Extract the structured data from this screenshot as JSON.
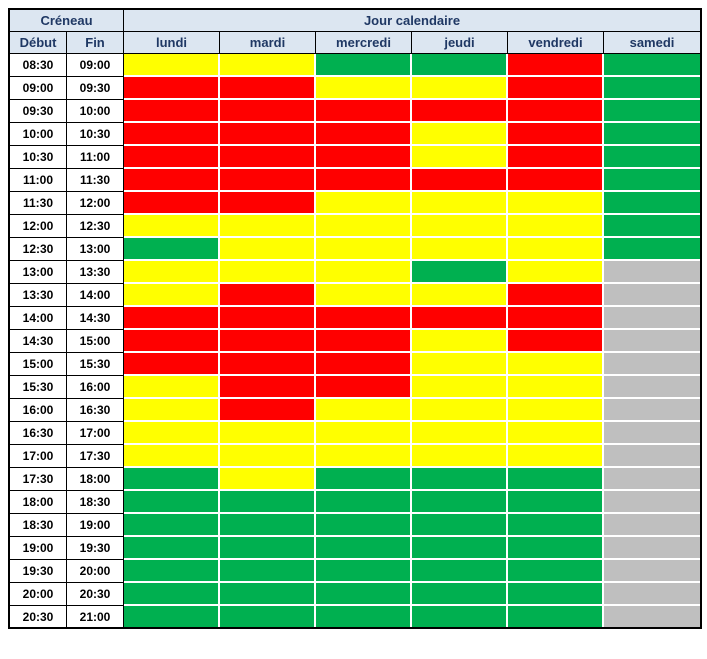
{
  "header": {
    "creneau_label": "Créneau",
    "jour_label": "Jour calendaire",
    "debut_label": "Début",
    "fin_label": "Fin"
  },
  "colors": {
    "header_bg": "#DCE6F1",
    "header_text": "#1F3864",
    "outer_border": "#000000"
  },
  "chart_data": {
    "type": "heatmap",
    "title": "Jour calendaire",
    "xlabel": "Jour calendaire",
    "ylabel": "Créneau",
    "columns": [
      "lundi",
      "mardi",
      "mercredi",
      "jeudi",
      "vendredi",
      "samedi"
    ],
    "color_key": {
      "R": "#FF0000",
      "Y": "#FFFF00",
      "G": "#00B050",
      "X": "#BFBFBF"
    },
    "rows": [
      {
        "debut": "08:30",
        "fin": "09:00",
        "cells": [
          "Y",
          "Y",
          "G",
          "G",
          "R",
          "G"
        ]
      },
      {
        "debut": "09:00",
        "fin": "09:30",
        "cells": [
          "R",
          "R",
          "Y",
          "Y",
          "R",
          "G"
        ]
      },
      {
        "debut": "09:30",
        "fin": "10:00",
        "cells": [
          "R",
          "R",
          "R",
          "R",
          "R",
          "G"
        ]
      },
      {
        "debut": "10:00",
        "fin": "10:30",
        "cells": [
          "R",
          "R",
          "R",
          "Y",
          "R",
          "G"
        ]
      },
      {
        "debut": "10:30",
        "fin": "11:00",
        "cells": [
          "R",
          "R",
          "R",
          "Y",
          "R",
          "G"
        ]
      },
      {
        "debut": "11:00",
        "fin": "11:30",
        "cells": [
          "R",
          "R",
          "R",
          "R",
          "R",
          "G"
        ]
      },
      {
        "debut": "11:30",
        "fin": "12:00",
        "cells": [
          "R",
          "R",
          "Y",
          "Y",
          "Y",
          "G"
        ]
      },
      {
        "debut": "12:00",
        "fin": "12:30",
        "cells": [
          "Y",
          "Y",
          "Y",
          "Y",
          "Y",
          "G"
        ]
      },
      {
        "debut": "12:30",
        "fin": "13:00",
        "cells": [
          "G",
          "Y",
          "Y",
          "Y",
          "Y",
          "G"
        ]
      },
      {
        "debut": "13:00",
        "fin": "13:30",
        "cells": [
          "Y",
          "Y",
          "Y",
          "G",
          "Y",
          "X"
        ]
      },
      {
        "debut": "13:30",
        "fin": "14:00",
        "cells": [
          "Y",
          "R",
          "Y",
          "Y",
          "R",
          "X"
        ]
      },
      {
        "debut": "14:00",
        "fin": "14:30",
        "cells": [
          "R",
          "R",
          "R",
          "R",
          "R",
          "X"
        ]
      },
      {
        "debut": "14:30",
        "fin": "15:00",
        "cells": [
          "R",
          "R",
          "R",
          "Y",
          "R",
          "X"
        ]
      },
      {
        "debut": "15:00",
        "fin": "15:30",
        "cells": [
          "R",
          "R",
          "R",
          "Y",
          "Y",
          "X"
        ]
      },
      {
        "debut": "15:30",
        "fin": "16:00",
        "cells": [
          "Y",
          "R",
          "R",
          "Y",
          "Y",
          "X"
        ]
      },
      {
        "debut": "16:00",
        "fin": "16:30",
        "cells": [
          "Y",
          "R",
          "Y",
          "Y",
          "Y",
          "X"
        ]
      },
      {
        "debut": "16:30",
        "fin": "17:00",
        "cells": [
          "Y",
          "Y",
          "Y",
          "Y",
          "Y",
          "X"
        ]
      },
      {
        "debut": "17:00",
        "fin": "17:30",
        "cells": [
          "Y",
          "Y",
          "Y",
          "Y",
          "Y",
          "X"
        ]
      },
      {
        "debut": "17:30",
        "fin": "18:00",
        "cells": [
          "G",
          "Y",
          "G",
          "G",
          "G",
          "X"
        ]
      },
      {
        "debut": "18:00",
        "fin": "18:30",
        "cells": [
          "G",
          "G",
          "G",
          "G",
          "G",
          "X"
        ]
      },
      {
        "debut": "18:30",
        "fin": "19:00",
        "cells": [
          "G",
          "G",
          "G",
          "G",
          "G",
          "X"
        ]
      },
      {
        "debut": "19:00",
        "fin": "19:30",
        "cells": [
          "G",
          "G",
          "G",
          "G",
          "G",
          "X"
        ]
      },
      {
        "debut": "19:30",
        "fin": "20:00",
        "cells": [
          "G",
          "G",
          "G",
          "G",
          "G",
          "X"
        ]
      },
      {
        "debut": "20:00",
        "fin": "20:30",
        "cells": [
          "G",
          "G",
          "G",
          "G",
          "G",
          "X"
        ]
      },
      {
        "debut": "20:30",
        "fin": "21:00",
        "cells": [
          "G",
          "G",
          "G",
          "G",
          "G",
          "X"
        ]
      }
    ]
  }
}
